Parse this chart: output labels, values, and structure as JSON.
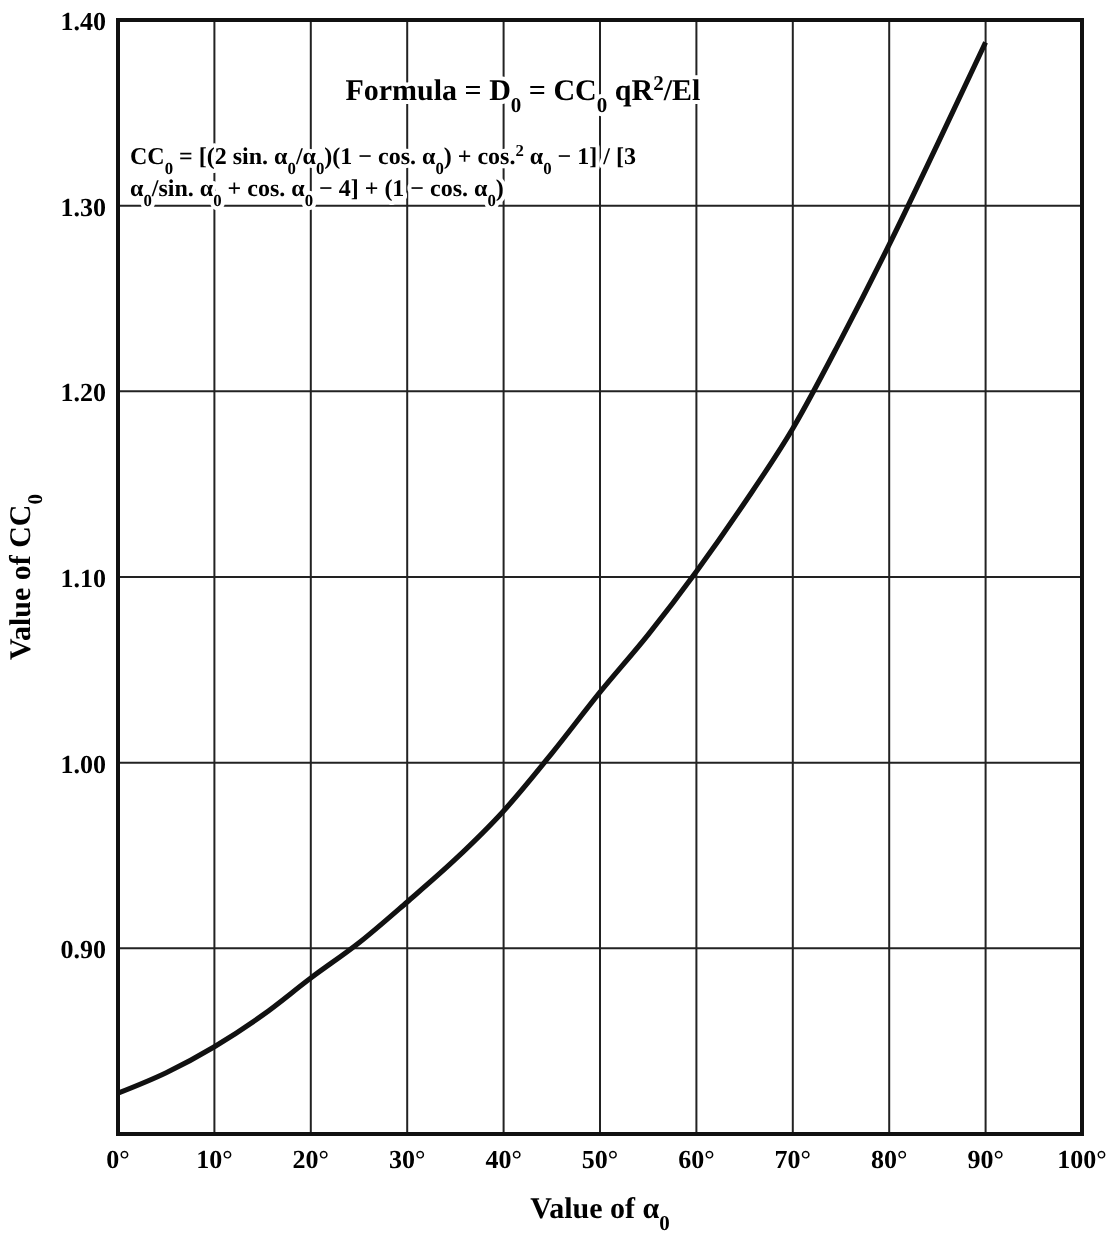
{
  "chart_data": {
    "type": "line",
    "xlabel": "Value of α$_{0}$",
    "ylabel": "Value of CC$_{0}$",
    "x": [
      0,
      5,
      10,
      15,
      20,
      25,
      30,
      35,
      40,
      45,
      50,
      55,
      60,
      65,
      70,
      75,
      80,
      85,
      90
    ],
    "series": [
      {
        "color": "#111111",
        "values": [
          0.822,
          0.833,
          0.847,
          0.864,
          0.884,
          0.903,
          0.925,
          0.948,
          0.974,
          1.005,
          1.038,
          1.069,
          1.103,
          1.14,
          1.18,
          1.228,
          1.279,
          1.333,
          1.388
        ]
      }
    ],
    "xlim": [
      0,
      100
    ],
    "ylim": [
      0.8,
      1.4
    ],
    "xticks": [
      {
        "value": 0,
        "label": "0°"
      },
      {
        "value": 10,
        "label": "10°"
      },
      {
        "value": 20,
        "label": "20°"
      },
      {
        "value": 30,
        "label": "30°"
      },
      {
        "value": 40,
        "label": "40°"
      },
      {
        "value": 50,
        "label": "50°"
      },
      {
        "value": 60,
        "label": "60°"
      },
      {
        "value": 70,
        "label": "70°"
      },
      {
        "value": 80,
        "label": "80°"
      },
      {
        "value": 90,
        "label": "90°"
      },
      {
        "value": 100,
        "label": "100°"
      }
    ],
    "yticks": [
      {
        "value": 0.8,
        "label": null
      },
      {
        "value": 0.9,
        "label": "0.90"
      },
      {
        "value": 1.0,
        "label": "1.00"
      },
      {
        "value": 1.1,
        "label": "1.10"
      },
      {
        "value": 1.2,
        "label": "1.20"
      },
      {
        "value": 1.3,
        "label": "1.30"
      },
      {
        "value": 1.4,
        "label": "1.40"
      }
    ],
    "grid": true,
    "marker": "none",
    "line_style": "solid",
    "annotations": [
      "Formula = D$_{0}$ = CC$_{0}$ qR$^{2}$/El",
      "CC$_{0}$ = [(2 sin. α$_{0}$/α$_{0}$)(1 − cos. α$_{0}$) + cos.$^{2}$ α$_{0}$ − 1] / [3 α$_{0}$/sin. α$_{0}$ + cos. α$_{0}$ − 4] + (1 − cos. α$_{0}$)"
    ]
  }
}
